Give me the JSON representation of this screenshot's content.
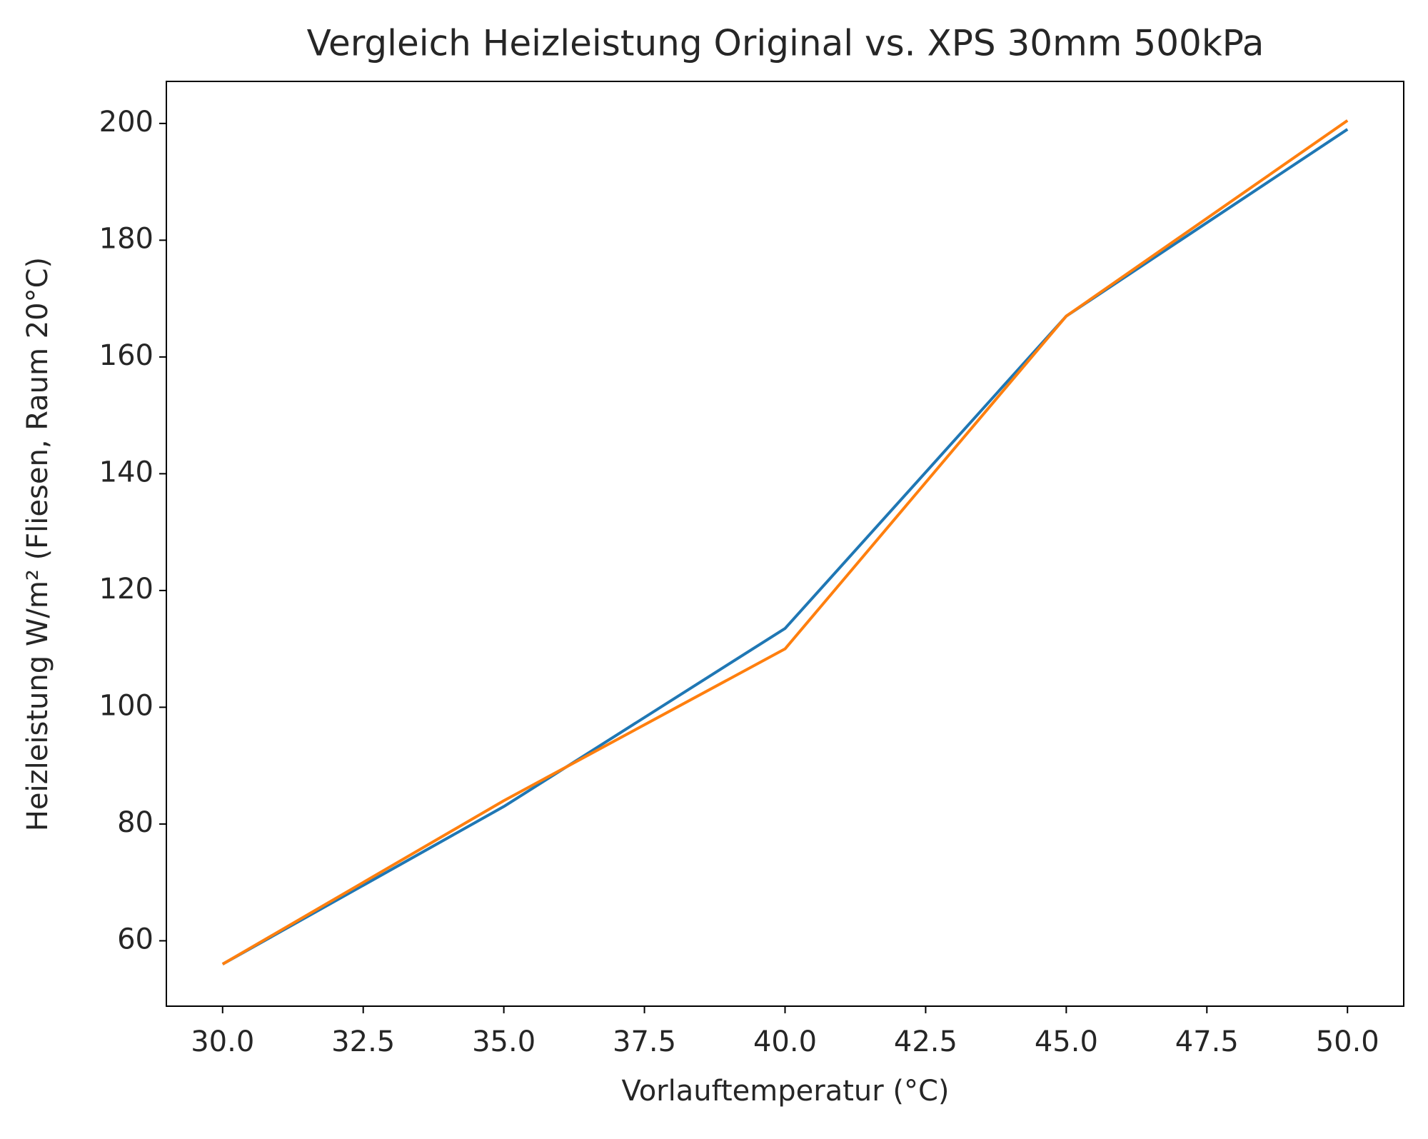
{
  "chart_data": {
    "type": "line",
    "title": "Vergleich Heizleistung Original vs. XPS 30mm 500kPa",
    "x_label": "Vorlauftemperatur (°C)",
    "y_label": "Heizleistung W/m² (Fliesen, Raum 20°C)",
    "x": [
      30,
      35,
      40,
      45,
      50
    ],
    "series": [
      {
        "color": "#1f77b4",
        "values": [
          56,
          83,
          113.5,
          167,
          199
        ]
      },
      {
        "color": "#ff7f0e",
        "values": [
          56,
          84,
          110,
          167,
          200.5
        ]
      }
    ],
    "xlim": [
      29,
      51
    ],
    "ylim": [
      48.8,
      207.2
    ],
    "xticks": [
      {
        "value": 30,
        "label": "30.0"
      },
      {
        "value": 32.5,
        "label": "32.5"
      },
      {
        "value": 35,
        "label": "35.0"
      },
      {
        "value": 37.5,
        "label": "37.5"
      },
      {
        "value": 40,
        "label": "40.0"
      },
      {
        "value": 42.5,
        "label": "42.5"
      },
      {
        "value": 45,
        "label": "45.0"
      },
      {
        "value": 47.5,
        "label": "47.5"
      },
      {
        "value": 50,
        "label": "50.0"
      }
    ],
    "yticks": [
      60,
      80,
      100,
      120,
      140,
      160,
      180,
      200
    ],
    "grid": false
  }
}
